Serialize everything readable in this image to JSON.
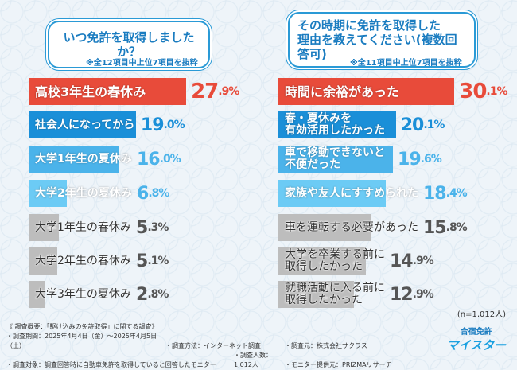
{
  "left": {
    "title": "いつ免許を取得しましたか？",
    "note": "※全12項目中上位7項目を抜粋"
  },
  "right": {
    "title_line1": "その時期に免許を取得した",
    "title_line2": "理由を教えてください(複数回答可)",
    "note": "※全11項目中上位7項目を抜粋"
  },
  "chart_data": [
    {
      "type": "bar",
      "orientation": "horizontal",
      "unit": "%",
      "categories": [
        "高校3年生の春休み",
        "社会人になってから",
        "大学1年生の夏休み",
        "大学2年生の夏休み",
        "大学1年生の春休み",
        "大学2年生の春休み",
        "大学3年生の夏休み"
      ],
      "values": [
        27.9,
        19.0,
        16.0,
        6.8,
        5.3,
        5.1,
        2.8
      ],
      "labels": [
        "27.9",
        "19.0",
        "16.0",
        "6.8",
        "5.3",
        "5.1",
        "2.8"
      ],
      "colors": [
        "#e84b3a",
        "#1a8fd8",
        "#4bb3ea",
        "#6ccbf5",
        "#bdbdbd",
        "#bdbdbd",
        "#bdbdbd"
      ]
    },
    {
      "type": "bar",
      "orientation": "horizontal",
      "unit": "%",
      "categories": [
        "時間に余裕があった",
        "春・夏休みを\n有効活用したかった",
        "車で移動できないと\n不便だった",
        "家族や友人にすすめられた",
        "車を運転する必要があった",
        "大学を卒業する前に\n取得したかった",
        "就職活動に入る前に\n取得したかった"
      ],
      "values": [
        30.1,
        20.1,
        19.6,
        18.4,
        15.8,
        14.9,
        12.9
      ],
      "labels": [
        "30.1",
        "20.1",
        "19.6",
        "18.4",
        "15.8",
        "14.9",
        "12.9"
      ],
      "colors": [
        "#e84b3a",
        "#1a8fd8",
        "#4bb3ea",
        "#6ccbf5",
        "#bdbdbd",
        "#bdbdbd",
        "#bdbdbd"
      ]
    }
  ],
  "sample": "(n=1,012人)",
  "footer": {
    "l1": "《 調査概要：「駆け込みの免許取得」に関する調査》",
    "period": "・調査期間：2025年4月4日（金）～2025年4月5日（土）",
    "method": "・調査方法：インターネット調査",
    "source": "・調査元：株式会社サクラス",
    "target": "・調査対象：調査回答時に自動車免許を取得していると回答したモニター",
    "count": "・調査人数：1,012人",
    "provider": "・モニター提供元：PRIZMAリサーチ"
  },
  "logo": {
    "top": "合宿免許",
    "bottom": "マイスター"
  }
}
